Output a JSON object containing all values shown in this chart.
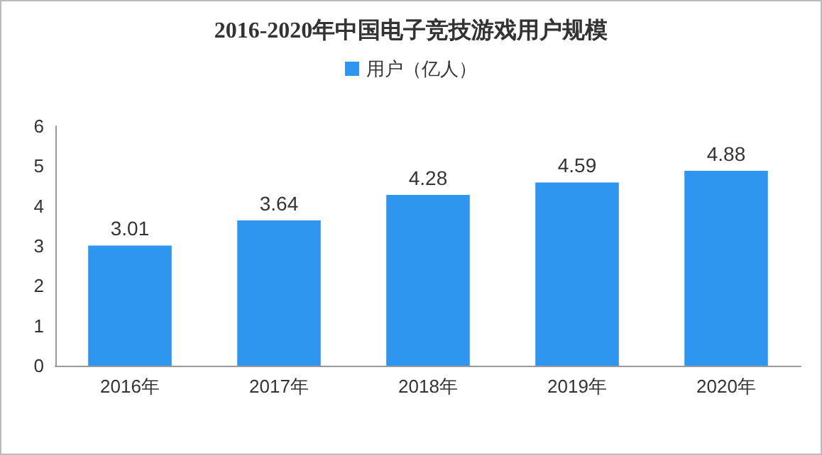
{
  "chart_data": {
    "type": "bar",
    "title": "2016-2020年中国电子竞技游戏用户规模",
    "categories": [
      "2016年",
      "2017年",
      "2018年",
      "2019年",
      "2020年"
    ],
    "series": [
      {
        "name": "用户（亿人）",
        "color": "#2e96ee",
        "values": [
          3.01,
          3.64,
          4.28,
          4.59,
          4.88
        ]
      }
    ],
    "ylim": [
      0,
      6
    ],
    "yticks": [
      0,
      1,
      2,
      3,
      4,
      5,
      6
    ],
    "grid": false,
    "legend": "top",
    "data_labels": true
  }
}
